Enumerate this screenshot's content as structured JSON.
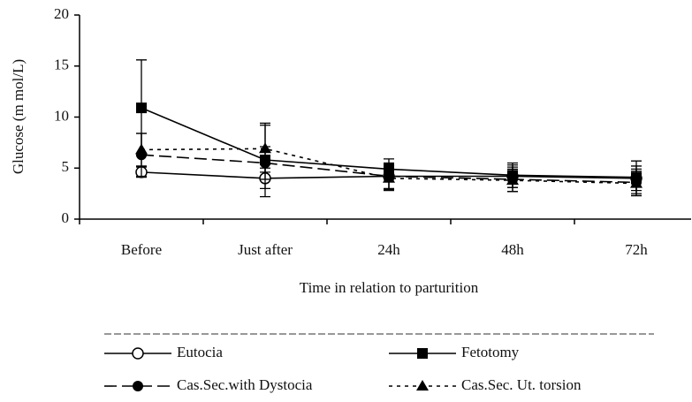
{
  "chart_data": {
    "type": "line",
    "y_label": "Glucose (m mol/L)",
    "x_label": "Time in relation to parturition",
    "categories": [
      "Before",
      "Just after",
      "24h",
      "48h",
      "72h"
    ],
    "ylim": [
      0,
      20
    ],
    "yticks": [
      0,
      5,
      10,
      15,
      20
    ],
    "series": [
      {
        "name": "Eutocia",
        "color": "#000000",
        "dash": "solid",
        "marker": "open-circle",
        "values": [
          4.6,
          4.0,
          4.2,
          4.2,
          4.0
        ],
        "errors": [
          0.5,
          1.0,
          1.2,
          1.1,
          1.2
        ]
      },
      {
        "name": "Fetotomy",
        "color": "#000000",
        "dash": "solid",
        "marker": "square",
        "values": [
          10.9,
          5.8,
          4.9,
          4.3,
          4.1
        ],
        "errors": [
          4.7,
          3.6,
          1.0,
          1.2,
          1.6
        ]
      },
      {
        "name": "Cas.Sec.with Dystocia",
        "color": "#000000",
        "dash": "longdash",
        "marker": "circle",
        "values": [
          6.3,
          5.5,
          4.2,
          3.9,
          3.6
        ],
        "errors": [
          2.1,
          1.6,
          1.3,
          1.2,
          1.3
        ]
      },
      {
        "name": "Cas.Sec. Ut. torsion",
        "color": "#000000",
        "dash": "dotted",
        "marker": "triangle",
        "values": [
          6.8,
          6.9,
          4.0,
          3.8,
          3.5
        ],
        "errors": [
          1.6,
          2.3,
          1.2,
          1.1,
          1.2
        ]
      }
    ]
  }
}
